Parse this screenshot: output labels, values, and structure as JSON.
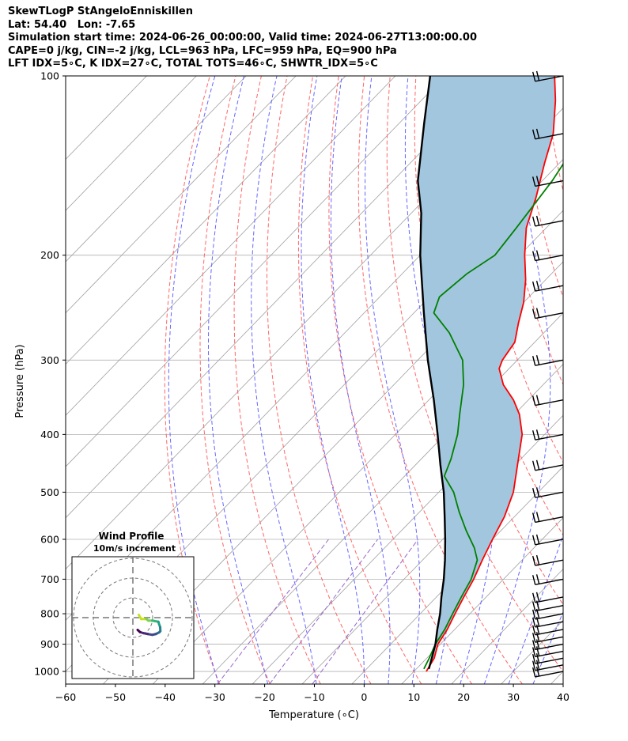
{
  "header": {
    "title": "SkewTLogP StAngeloEnniskillen",
    "location": "Lat: 54.40   Lon: -7.65",
    "times": "Simulation start time: 2024-06-26_00:00:00, Valid time: 2024-06-27T13:00:00.00",
    "params": "CAPE=0 j/kg, CIN=-2 j/kg, LCL=963 hPa, LFC=959 hPa, EQ=900 hPa",
    "indices": "LFT IDX=5∘C, K IDX=27∘C, TOTAL TOTS=46∘C, SHWTR_IDX=5∘C"
  },
  "colors": {
    "temperature": "#ff0000",
    "dewpoint": "#008000",
    "parcel": "#000000",
    "cape_fill": "#a3c6df",
    "dry_adiabats": "#ff6666",
    "moist_adiabats": "#6666ff",
    "mixing_ratio": "#9966cc",
    "isotherms": "#a0a0a0"
  },
  "chart_data": {
    "type": "skewt",
    "xlabel": "Temperature (∘C)",
    "ylabel": "Pressure (hPa)",
    "xlim": [
      -60,
      40
    ],
    "ylim": [
      1050,
      100
    ],
    "xticks": [
      -60,
      -50,
      -40,
      -30,
      -20,
      -10,
      0,
      10,
      20,
      30,
      40
    ],
    "yticks": [
      100,
      200,
      300,
      400,
      500,
      600,
      700,
      800,
      900,
      1000
    ],
    "y_scale": "log",
    "grid": true,
    "series": [
      {
        "role": "temperature",
        "color": "#ff0000",
        "points": [
          [
            1000,
            12.5
          ],
          [
            950,
            11.5
          ],
          [
            900,
            9.5
          ],
          [
            850,
            8.5
          ],
          [
            800,
            7
          ],
          [
            750,
            5.5
          ],
          [
            700,
            4
          ],
          [
            650,
            2
          ],
          [
            600,
            0
          ],
          [
            550,
            -2
          ],
          [
            500,
            -5
          ],
          [
            450,
            -9.5
          ],
          [
            400,
            -14.5
          ],
          [
            370,
            -19
          ],
          [
            350,
            -23
          ],
          [
            330,
            -28
          ],
          [
            310,
            -32
          ],
          [
            300,
            -33
          ],
          [
            280,
            -34
          ],
          [
            260,
            -37
          ],
          [
            240,
            -40
          ],
          [
            220,
            -44
          ],
          [
            200,
            -49
          ],
          [
            180,
            -54
          ],
          [
            160,
            -58
          ],
          [
            140,
            -63
          ],
          [
            125,
            -67
          ],
          [
            110,
            -73
          ],
          [
            100,
            -78
          ]
        ]
      },
      {
        "role": "dewpoint",
        "color": "#008000",
        "points": [
          [
            990,
            11.5
          ],
          [
            950,
            10.5
          ],
          [
            900,
            9
          ],
          [
            850,
            8
          ],
          [
            800,
            6.5
          ],
          [
            750,
            5
          ],
          [
            700,
            3.5
          ],
          [
            650,
            1
          ],
          [
            620,
            -2
          ],
          [
            580,
            -7
          ],
          [
            540,
            -12
          ],
          [
            500,
            -17
          ],
          [
            470,
            -22
          ],
          [
            440,
            -24
          ],
          [
            400,
            -27.5
          ],
          [
            370,
            -31
          ],
          [
            330,
            -36
          ],
          [
            300,
            -41
          ],
          [
            270,
            -49
          ],
          [
            250,
            -56
          ],
          [
            235,
            -58
          ],
          [
            215,
            -57
          ],
          [
            200,
            -55
          ],
          [
            180,
            -56
          ],
          [
            150,
            -58
          ],
          [
            125,
            -61
          ],
          [
            110,
            -64
          ],
          [
            100,
            -67
          ]
        ]
      },
      {
        "role": "parcel",
        "color": "#000000",
        "points": [
          [
            990,
            12.5
          ],
          [
            950,
            11
          ],
          [
            900,
            9
          ],
          [
            850,
            6.5
          ],
          [
            800,
            4
          ],
          [
            750,
            1
          ],
          [
            700,
            -2
          ],
          [
            650,
            -5.5
          ],
          [
            600,
            -9.5
          ],
          [
            550,
            -14
          ],
          [
            500,
            -19
          ],
          [
            450,
            -25
          ],
          [
            400,
            -31.5
          ],
          [
            350,
            -39
          ],
          [
            300,
            -48
          ],
          [
            250,
            -58
          ],
          [
            200,
            -70
          ],
          [
            170,
            -78
          ],
          [
            150,
            -85
          ],
          [
            120,
            -95
          ],
          [
            100,
            -103
          ]
        ]
      }
    ],
    "wind_barbs": {
      "color": "#000000",
      "levels": [
        1000,
        975,
        950,
        925,
        900,
        875,
        850,
        825,
        800,
        775,
        750,
        700,
        650,
        600,
        550,
        500,
        450,
        400,
        350,
        300,
        250,
        225,
        200,
        175,
        150,
        125,
        100
      ]
    },
    "inset": {
      "title": "Wind Profile",
      "subtitle": "10m/s increment",
      "rings": 3,
      "hodograph": [
        [
          3.0,
          1.4
        ],
        [
          4.2,
          -0.7
        ],
        [
          6.8,
          -0.7
        ],
        [
          7.8,
          -1.5
        ],
        [
          9.8,
          -1.5
        ],
        [
          12.9,
          -2.1
        ],
        [
          13.2,
          -3.1
        ],
        [
          13.8,
          -4.8
        ],
        [
          13.9,
          -6.8
        ],
        [
          13.4,
          -7.4
        ],
        [
          11.6,
          -8.3
        ],
        [
          9.8,
          -8.7
        ],
        [
          7.6,
          -8.3
        ],
        [
          5.2,
          -7.8
        ],
        [
          3.6,
          -7.3
        ],
        [
          2.4,
          -6.2
        ]
      ]
    }
  }
}
